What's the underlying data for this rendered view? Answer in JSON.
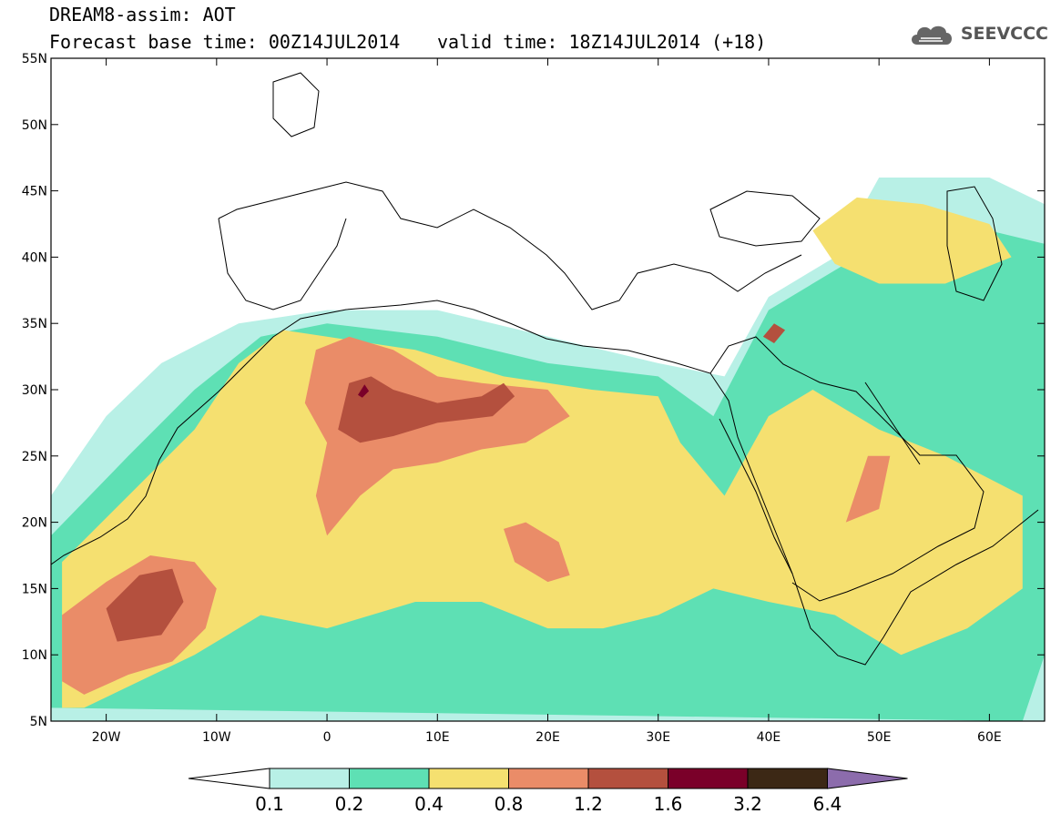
{
  "header": {
    "title": "DREAM8-assim: AOT",
    "base_time": "Forecast base time: 00Z14JUL2014",
    "valid_time": "valid time: 18Z14JUL2014 (+18)",
    "logo_text": "SEEVCCC",
    "logo_icon": "cloud-icon"
  },
  "map": {
    "lon_range": [
      -25,
      65
    ],
    "lat_range": [
      5,
      55
    ],
    "lon_ticks": [
      {
        "value": -20,
        "label": "20W"
      },
      {
        "value": -10,
        "label": "10W"
      },
      {
        "value": 0,
        "label": "0"
      },
      {
        "value": 10,
        "label": "10E"
      },
      {
        "value": 20,
        "label": "20E"
      },
      {
        "value": 30,
        "label": "30E"
      },
      {
        "value": 40,
        "label": "40E"
      },
      {
        "value": 50,
        "label": "50E"
      },
      {
        "value": 60,
        "label": "60E"
      }
    ],
    "lat_ticks": [
      {
        "value": 5,
        "label": "5N"
      },
      {
        "value": 10,
        "label": "10N"
      },
      {
        "value": 15,
        "label": "15N"
      },
      {
        "value": 20,
        "label": "20N"
      },
      {
        "value": 25,
        "label": "25N"
      },
      {
        "value": 30,
        "label": "30N"
      },
      {
        "value": 35,
        "label": "35N"
      },
      {
        "value": 40,
        "label": "40N"
      },
      {
        "value": 45,
        "label": "45N"
      },
      {
        "value": 50,
        "label": "50N"
      },
      {
        "value": 55,
        "label": "55N"
      }
    ]
  },
  "colorbar": {
    "labels": [
      "0.1",
      "0.2",
      "0.4",
      "0.8",
      "1.2",
      "1.6",
      "3.2",
      "6.4"
    ],
    "colors": [
      "#b8f0e6",
      "#5ee0b4",
      "#f5e070",
      "#ea8c68",
      "#b4503e",
      "#7a0029",
      "#3c2815",
      "#8c6cac"
    ]
  },
  "chart_data": {
    "type": "heatmap",
    "variable": "AOT",
    "levels": [
      0.1,
      0.2,
      0.4,
      0.8,
      1.2,
      1.6,
      3.2,
      6.4
    ],
    "regions": [
      {
        "level": 0.1,
        "polygon": [
          [
            -25,
            5
          ],
          [
            -25,
            22
          ],
          [
            -20,
            28
          ],
          [
            -15,
            32
          ],
          [
            -8,
            35
          ],
          [
            0,
            36
          ],
          [
            10,
            36
          ],
          [
            20,
            34
          ],
          [
            30,
            32
          ],
          [
            36,
            31
          ],
          [
            40,
            37
          ],
          [
            46,
            40
          ],
          [
            50,
            46
          ],
          [
            60,
            46
          ],
          [
            65,
            44
          ],
          [
            65,
            5
          ]
        ]
      },
      {
        "level": 0.2,
        "polygon": [
          [
            -25,
            6
          ],
          [
            -25,
            19
          ],
          [
            -18,
            25
          ],
          [
            -12,
            30
          ],
          [
            -6,
            34
          ],
          [
            0,
            35
          ],
          [
            10,
            34
          ],
          [
            20,
            32
          ],
          [
            30,
            31
          ],
          [
            35,
            28
          ],
          [
            40,
            36
          ],
          [
            48,
            40
          ],
          [
            55,
            43
          ],
          [
            65,
            41
          ],
          [
            65,
            10
          ],
          [
            63,
            5
          ]
        ]
      },
      {
        "level": 0.4,
        "polygon": [
          [
            -24,
            6
          ],
          [
            -24,
            17
          ],
          [
            -18,
            22
          ],
          [
            -12,
            27
          ],
          [
            -8,
            32
          ],
          [
            -4,
            34.5
          ],
          [
            0,
            34
          ],
          [
            8,
            33
          ],
          [
            16,
            31
          ],
          [
            24,
            30
          ],
          [
            30,
            29.5
          ],
          [
            32,
            26
          ],
          [
            36,
            22
          ],
          [
            40,
            28
          ],
          [
            44,
            30
          ],
          [
            50,
            27
          ],
          [
            56,
            25
          ],
          [
            63,
            22
          ],
          [
            63,
            15
          ],
          [
            58,
            12
          ],
          [
            52,
            10
          ],
          [
            46,
            13
          ],
          [
            40,
            14
          ],
          [
            35,
            15
          ],
          [
            30,
            13
          ],
          [
            25,
            12
          ],
          [
            20,
            12
          ],
          [
            14,
            14
          ],
          [
            8,
            14
          ],
          [
            0,
            12
          ],
          [
            -6,
            13
          ],
          [
            -12,
            10
          ],
          [
            -17,
            8
          ],
          [
            -22,
            6
          ]
        ]
      },
      {
        "level": 0.4,
        "polygon": [
          [
            44,
            42
          ],
          [
            48,
            44.5
          ],
          [
            54,
            44
          ],
          [
            60,
            42.5
          ],
          [
            62,
            40
          ],
          [
            56,
            38
          ],
          [
            50,
            38
          ],
          [
            46,
            39.5
          ]
        ]
      },
      {
        "level": 0.8,
        "polygon": [
          [
            -1,
            33
          ],
          [
            2,
            34
          ],
          [
            6,
            33
          ],
          [
            10,
            31
          ],
          [
            14,
            30.5
          ],
          [
            20,
            30
          ],
          [
            22,
            28
          ],
          [
            18,
            26
          ],
          [
            14,
            25.5
          ],
          [
            10,
            24.5
          ],
          [
            6,
            24
          ],
          [
            3,
            22
          ],
          [
            0,
            19
          ],
          [
            -1,
            22
          ],
          [
            0,
            26
          ],
          [
            -2,
            29
          ]
        ]
      },
      {
        "level": 0.8,
        "polygon": [
          [
            -24,
            8
          ],
          [
            -24,
            13
          ],
          [
            -20,
            15.5
          ],
          [
            -16,
            17.5
          ],
          [
            -12,
            17
          ],
          [
            -10,
            15
          ],
          [
            -11,
            12
          ],
          [
            -14,
            9.5
          ],
          [
            -18,
            8.5
          ],
          [
            -22,
            7
          ]
        ]
      },
      {
        "level": 0.8,
        "polygon": [
          [
            16,
            19.5
          ],
          [
            18,
            20
          ],
          [
            21,
            18.5
          ],
          [
            22,
            16
          ],
          [
            20,
            15.5
          ],
          [
            17,
            17
          ]
        ]
      },
      {
        "level": 0.8,
        "polygon": [
          [
            47,
            20
          ],
          [
            49,
            25
          ],
          [
            51,
            25
          ],
          [
            50,
            21
          ]
        ]
      },
      {
        "level": 1.2,
        "polygon": [
          [
            1,
            27
          ],
          [
            2,
            30.5
          ],
          [
            4,
            31
          ],
          [
            6,
            30
          ],
          [
            10,
            29
          ],
          [
            14,
            29.5
          ],
          [
            16,
            30.5
          ],
          [
            17,
            29.5
          ],
          [
            15,
            28
          ],
          [
            10,
            27.5
          ],
          [
            6,
            26.5
          ],
          [
            3,
            26
          ]
        ]
      },
      {
        "level": 1.2,
        "polygon": [
          [
            -19,
            11
          ],
          [
            -20,
            13.5
          ],
          [
            -17,
            16
          ],
          [
            -14,
            16.5
          ],
          [
            -13,
            14
          ],
          [
            -15,
            11.5
          ]
        ]
      },
      {
        "level": 1.2,
        "polygon": [
          [
            39.5,
            34
          ],
          [
            40.5,
            35
          ],
          [
            41.5,
            34.5
          ],
          [
            40.5,
            33.5
          ]
        ]
      },
      {
        "level": 1.6,
        "polygon": [
          [
            2.8,
            29.6
          ],
          [
            3.4,
            30.4
          ],
          [
            3.8,
            29.9
          ],
          [
            3.2,
            29.4
          ]
        ]
      }
    ]
  }
}
